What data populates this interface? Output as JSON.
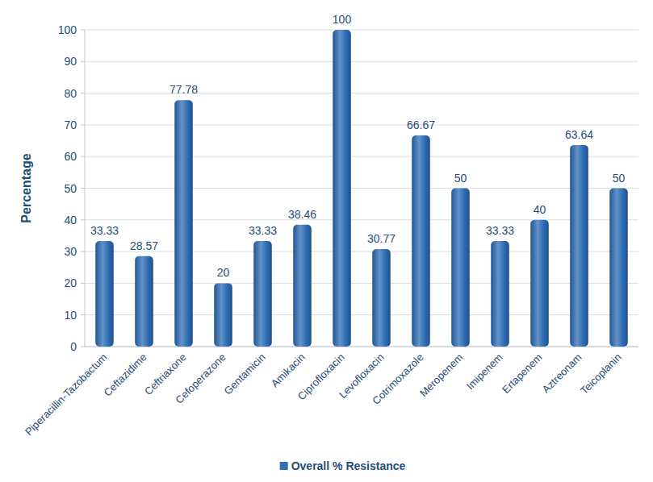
{
  "chart_data": {
    "type": "bar",
    "y_label": "Percentage",
    "categories": [
      "Piperacillin-Tazobactum",
      "Ceftazidime",
      "Ceftriaxone",
      "Cefoperazone",
      "Gentamicin",
      "Amikacin",
      "Ciprofloxacin",
      "Levofloxacin",
      "Cotrimoxazole",
      "Meropenem",
      "Imipenem",
      "Ertapenem",
      "Aztreonam",
      "Teicoplanin"
    ],
    "series": [
      {
        "name": "Overall % Resistance",
        "color": "#2f6fb7",
        "values": [
          33.33,
          28.57,
          77.78,
          20,
          33.33,
          38.46,
          100,
          30.77,
          66.67,
          50,
          33.33,
          40,
          63.64,
          50
        ]
      }
    ],
    "ylim": [
      0,
      100
    ],
    "yticks": [
      0,
      10,
      20,
      30,
      40,
      50,
      60,
      70,
      80,
      90,
      100
    ],
    "grid": true,
    "legend": "bottom",
    "data_labels": true
  }
}
